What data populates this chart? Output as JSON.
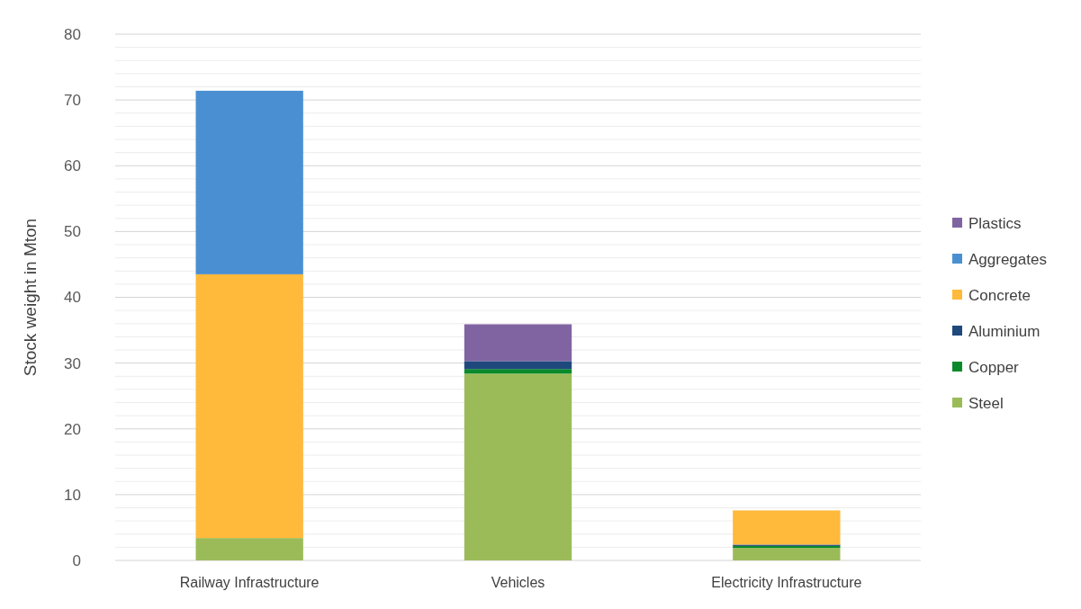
{
  "chart_data": {
    "type": "bar",
    "stacked": true,
    "ylabel": "Stock weight in Mton",
    "categories": [
      "Railway Infrastructure",
      "Vehicles",
      "Electricity Infrastructure"
    ],
    "series": [
      {
        "name": "Steel",
        "color": "#9bbb59",
        "values": [
          3.4,
          28.4,
          1.9
        ]
      },
      {
        "name": "Copper",
        "color": "#0a8a2a",
        "values": [
          null,
          0.7,
          0.3
        ]
      },
      {
        "name": "Aluminium",
        "color": "#1f497d",
        "values": [
          null,
          1.2,
          0.2
        ]
      },
      {
        "name": "Concrete",
        "color": "#ffb93b",
        "values": [
          40.1,
          null,
          5.2
        ]
      },
      {
        "name": "Aggregates",
        "color": "#4a8fd1",
        "values": [
          27.9,
          null,
          null
        ]
      },
      {
        "name": "Plastics",
        "color": "#8064a2",
        "values": [
          null,
          5.6,
          null
        ]
      }
    ],
    "ylim": [
      0,
      80
    ],
    "yticks": [
      0,
      {
        "value": 2,
        "label": null
      },
      {
        "value": 4,
        "label": null
      },
      {
        "value": 6,
        "label": null
      },
      {
        "value": 8,
        "label": null
      },
      10,
      {
        "value": 12,
        "label": null
      },
      {
        "value": 14,
        "label": null
      },
      {
        "value": 16,
        "label": null
      },
      {
        "value": 18,
        "label": null
      },
      20,
      {
        "value": 22,
        "label": null
      },
      {
        "value": 24,
        "label": null
      },
      {
        "value": 26,
        "label": null
      },
      {
        "value": 28,
        "label": null
      },
      30,
      {
        "value": 32,
        "label": null
      },
      {
        "value": 34,
        "label": null
      },
      {
        "value": 36,
        "label": null
      },
      {
        "value": 38,
        "label": null
      },
      40,
      {
        "value": 42,
        "label": null
      },
      {
        "value": 44,
        "label": null
      },
      {
        "value": 46,
        "label": null
      },
      {
        "value": 48,
        "label": null
      },
      50,
      {
        "value": 52,
        "label": null
      },
      {
        "value": 54,
        "label": null
      },
      {
        "value": 56,
        "label": null
      },
      {
        "value": 58,
        "label": null
      },
      60,
      {
        "value": 62,
        "label": null
      },
      {
        "value": 64,
        "label": null
      },
      {
        "value": 66,
        "label": null
      },
      {
        "value": 68,
        "label": null
      },
      70,
      {
        "value": 72,
        "label": null
      },
      {
        "value": 74,
        "label": null
      },
      {
        "value": 76,
        "label": null
      },
      {
        "value": 78,
        "label": null
      },
      80
    ],
    "grid": "y",
    "legend": "right"
  }
}
